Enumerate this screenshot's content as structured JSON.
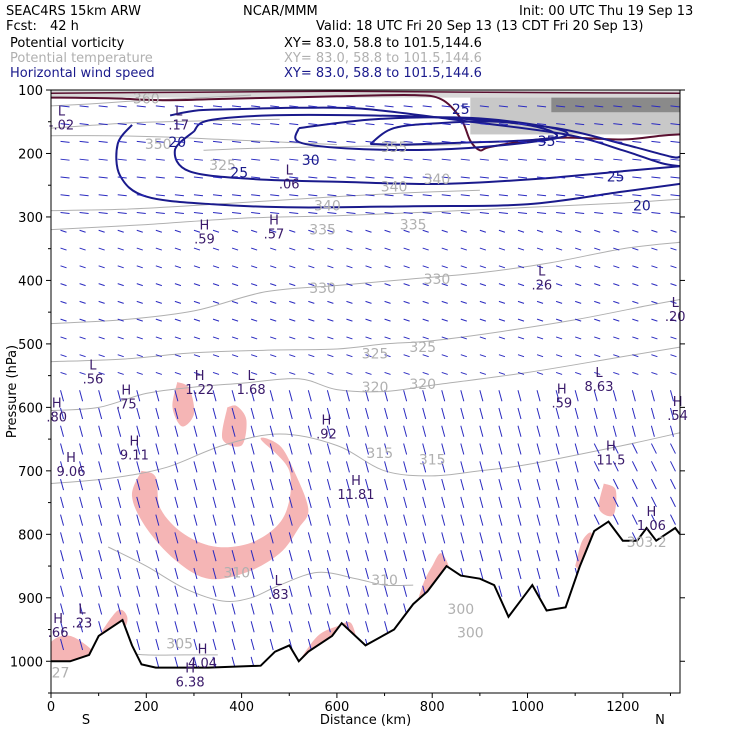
{
  "header": {
    "model": "SEAC4RS 15km ARW",
    "center": "NCAR/MMM",
    "init": "Init: 00 UTC Thu 19 Sep 13",
    "fcst_label": "Fcst:",
    "fcst_value": "42 h",
    "valid": "Valid: 18 UTC Fri 20 Sep 13 (13 CDT Fri 20 Sep 13)",
    "fields": [
      {
        "name": "Potential vorticity",
        "xy": "XY=  83.0, 58.8 to 101.5,144.6",
        "color": "#000000"
      },
      {
        "name": "Potential temperature",
        "xy": "XY=  83.0, 58.8 to 101.5,144.6",
        "color": "#b0b0b0"
      },
      {
        "name": "Horizontal wind speed",
        "xy": "XY=  83.0, 58.8 to 101.5,144.6",
        "color": "#1a1a8c"
      }
    ]
  },
  "chart_data": {
    "type": "cross-section",
    "xlabel": "Distance (km)",
    "ylabel": "Pressure (hPa)",
    "xlim": [
      0,
      1320
    ],
    "ylim": [
      1050,
      100
    ],
    "x_ticks": [
      0,
      200,
      400,
      600,
      800,
      1000,
      1200
    ],
    "y_ticks": [
      100,
      200,
      300,
      400,
      500,
      600,
      700,
      800,
      900,
      1000
    ],
    "end_labels": {
      "left": "S",
      "right": "N"
    },
    "colors": {
      "isentropes": "#b0b0b0",
      "wind_contours": "#1a1a8c",
      "wind_vectors": "#2a2ac0",
      "pv_fill": "#f5b5b5",
      "pv_contour": "#5a1030",
      "terrain": "#000000"
    },
    "isentropes": [
      {
        "theta": 360,
        "points": [
          [
            0,
            125
          ],
          [
            80,
            122
          ],
          [
            160,
            118
          ],
          [
            240,
            115
          ],
          [
            320,
            112
          ],
          [
            420,
            108
          ]
        ]
      },
      {
        "theta": 350,
        "points": [
          [
            0,
            160
          ],
          [
            80,
            156
          ],
          [
            160,
            152
          ],
          [
            240,
            150
          ],
          [
            360,
            148
          ],
          [
            480,
            146
          ]
        ]
      },
      {
        "theta": 345,
        "points": [
          [
            320,
            195
          ],
          [
            420,
            192
          ],
          [
            540,
            190
          ],
          [
            700,
            188
          ],
          [
            860,
            186
          ]
        ]
      },
      {
        "theta": 325,
        "points": [
          [
            0,
            172
          ],
          [
            120,
            172
          ],
          [
            240,
            174
          ],
          [
            360,
            178
          ],
          [
            480,
            182
          ],
          [
            600,
            186
          ]
        ]
      },
      {
        "theta": 340,
        "points": [
          [
            0,
            290
          ],
          [
            150,
            288
          ],
          [
            300,
            282
          ],
          [
            450,
            275
          ],
          [
            600,
            268
          ],
          [
            750,
            262
          ],
          [
            900,
            258
          ]
        ]
      },
      {
        "theta": 335,
        "points": [
          [
            0,
            320
          ],
          [
            200,
            312
          ],
          [
            400,
            302
          ],
          [
            600,
            298
          ],
          [
            800,
            292
          ],
          [
            1000,
            285
          ],
          [
            1200,
            278
          ],
          [
            1320,
            272
          ]
        ]
      },
      {
        "theta": 330,
        "points": [
          [
            0,
            468
          ],
          [
            150,
            462
          ],
          [
            300,
            448
          ],
          [
            450,
            418
          ],
          [
            600,
            408
          ],
          [
            750,
            398
          ],
          [
            900,
            388
          ],
          [
            1050,
            372
          ],
          [
            1200,
            350
          ],
          [
            1320,
            340
          ]
        ]
      },
      {
        "theta": 325,
        "points": [
          [
            0,
            528
          ],
          [
            150,
            524
          ],
          [
            300,
            514
          ],
          [
            450,
            510
          ],
          [
            600,
            508
          ],
          [
            700,
            500
          ],
          [
            800,
            495
          ],
          [
            950,
            480
          ],
          [
            1100,
            462
          ],
          [
            1250,
            440
          ],
          [
            1320,
            430
          ]
        ]
      },
      {
        "theta": 320,
        "points": [
          [
            0,
            605
          ],
          [
            100,
            600
          ],
          [
            200,
            578
          ],
          [
            300,
            568
          ],
          [
            400,
            562
          ],
          [
            520,
            555
          ],
          [
            600,
            572
          ],
          [
            700,
            575
          ],
          [
            800,
            565
          ],
          [
            1000,
            545
          ],
          [
            1200,
            520
          ],
          [
            1320,
            505
          ]
        ]
      },
      {
        "theta": 315,
        "points": [
          [
            0,
            720
          ],
          [
            120,
            712
          ],
          [
            240,
            695
          ],
          [
            360,
            660
          ],
          [
            480,
            642
          ],
          [
            600,
            660
          ],
          [
            700,
            700
          ],
          [
            800,
            708
          ],
          [
            900,
            700
          ],
          [
            1000,
            690
          ],
          [
            1200,
            660
          ],
          [
            1320,
            640
          ]
        ]
      },
      {
        "theta": 310,
        "points": [
          [
            120,
            820
          ],
          [
            200,
            850
          ],
          [
            280,
            885
          ],
          [
            360,
            905
          ],
          [
            420,
            900
          ],
          [
            480,
            880
          ],
          [
            560,
            860
          ],
          [
            640,
            870
          ],
          [
            700,
            880
          ],
          [
            760,
            880
          ]
        ]
      },
      {
        "theta": 305,
        "points": [
          [
            120,
            985
          ],
          [
            200,
            990
          ],
          [
            280,
            990
          ],
          [
            350,
            990
          ]
        ]
      },
      {
        "theta": 300,
        "points": [
          [
            820,
            920
          ],
          [
            880,
            950
          ],
          [
            940,
            955
          ]
        ]
      }
    ],
    "isentrope_labels": [
      {
        "x": 200,
        "p": 113,
        "text": "360"
      },
      {
        "x": 225,
        "p": 185,
        "text": "350"
      },
      {
        "x": 360,
        "p": 218,
        "text": "325"
      },
      {
        "x": 720,
        "p": 190,
        "text": "355"
      },
      {
        "x": 810,
        "p": 240,
        "text": "340"
      },
      {
        "x": 580,
        "p": 282,
        "text": "340"
      },
      {
        "x": 720,
        "p": 252,
        "text": "340"
      },
      {
        "x": 570,
        "p": 320,
        "text": "335"
      },
      {
        "x": 760,
        "p": 312,
        "text": "335"
      },
      {
        "x": 570,
        "p": 412,
        "text": "330"
      },
      {
        "x": 810,
        "p": 398,
        "text": "330"
      },
      {
        "x": 680,
        "p": 515,
        "text": "325"
      },
      {
        "x": 780,
        "p": 505,
        "text": "325"
      },
      {
        "x": 680,
        "p": 568,
        "text": "320"
      },
      {
        "x": 780,
        "p": 563,
        "text": "320"
      },
      {
        "x": 690,
        "p": 672,
        "text": "315"
      },
      {
        "x": 800,
        "p": 682,
        "text": "315"
      },
      {
        "x": 390,
        "p": 860,
        "text": "310"
      },
      {
        "x": 700,
        "p": 872,
        "text": "310"
      },
      {
        "x": 270,
        "p": 972,
        "text": "305"
      },
      {
        "x": 860,
        "p": 918,
        "text": "300"
      },
      {
        "x": 880,
        "p": 955,
        "text": "300"
      },
      {
        "x": 1250,
        "p": 812,
        "text": "303.2"
      },
      {
        "x": 20,
        "p": 1018,
        "text": "27"
      }
    ],
    "wind_speed_contours": [
      {
        "value": 20,
        "points": [
          [
            250,
            140
          ],
          [
            310,
            132
          ],
          [
            400,
            130
          ],
          [
            520,
            128
          ],
          [
            660,
            130
          ],
          [
            860,
            148
          ],
          [
            1080,
            170
          ],
          [
            1200,
            195
          ],
          [
            1280,
            215
          ],
          [
            1320,
            220
          ]
        ]
      },
      {
        "value": 20,
        "points": [
          [
            170,
            155
          ],
          [
            140,
            185
          ],
          [
            145,
            235
          ],
          [
            200,
            268
          ],
          [
            340,
            280
          ],
          [
            520,
            285
          ],
          [
            760,
            283
          ],
          [
            1000,
            280
          ],
          [
            1200,
            260
          ],
          [
            1320,
            248
          ]
        ]
      },
      {
        "value": 25,
        "points": [
          [
            300,
            165
          ],
          [
            330,
            148
          ],
          [
            460,
            140
          ],
          [
            660,
            140
          ],
          [
            860,
            145
          ],
          [
            1060,
            160
          ],
          [
            1200,
            185
          ],
          [
            1300,
            205
          ],
          [
            1320,
            205
          ]
        ]
      },
      {
        "value": 25,
        "points": [
          [
            300,
            165
          ],
          [
            260,
            195
          ],
          [
            290,
            228
          ],
          [
            420,
            240
          ],
          [
            620,
            245
          ],
          [
            820,
            248
          ],
          [
            1020,
            240
          ],
          [
            1200,
            228
          ],
          [
            1320,
            220
          ]
        ]
      },
      {
        "value": 30,
        "points": [
          [
            520,
            160
          ],
          [
            680,
            146
          ],
          [
            880,
            144
          ],
          [
            1040,
            158
          ],
          [
            1080,
            172
          ],
          [
            960,
            186
          ],
          [
            800,
            194
          ],
          [
            620,
            192
          ],
          [
            520,
            182
          ],
          [
            520,
            160
          ]
        ]
      },
      {
        "value": 35,
        "points": [
          [
            670,
            185
          ],
          [
            720,
            160
          ],
          [
            820,
            152
          ],
          [
            940,
            150
          ],
          [
            1030,
            160
          ],
          [
            1060,
            174
          ],
          [
            980,
            180
          ],
          [
            860,
            183
          ],
          [
            740,
            186
          ],
          [
            670,
            185
          ]
        ]
      }
    ],
    "wind_labels": [
      {
        "x": 265,
        "p": 182,
        "text": "20"
      },
      {
        "x": 395,
        "p": 230,
        "text": "25"
      },
      {
        "x": 545,
        "p": 210,
        "text": "30"
      },
      {
        "x": 860,
        "p": 130,
        "text": "25"
      },
      {
        "x": 1040,
        "p": 180,
        "text": "35"
      },
      {
        "x": 1185,
        "p": 236,
        "text": "25"
      },
      {
        "x": 1240,
        "p": 282,
        "text": "20"
      }
    ],
    "pv_extrema": [
      {
        "kind": "L",
        "x": 22,
        "p": 140,
        "value": "-.02"
      },
      {
        "kind": "L",
        "x": 268,
        "p": 140,
        "value": ".17"
      },
      {
        "kind": "L",
        "x": 500,
        "p": 233,
        "value": ".06"
      },
      {
        "kind": "H",
        "x": 322,
        "p": 320,
        "value": ".59"
      },
      {
        "kind": "H",
        "x": 468,
        "p": 312,
        "value": ".57"
      },
      {
        "kind": "L",
        "x": 1030,
        "p": 392,
        "value": ".26"
      },
      {
        "kind": "L",
        "x": 1310,
        "p": 442,
        "value": ".20"
      },
      {
        "kind": "L",
        "x": 88,
        "p": 540,
        "value": ".56"
      },
      {
        "kind": "H",
        "x": 158,
        "p": 580,
        "value": ".75"
      },
      {
        "kind": "H",
        "x": 312,
        "p": 557,
        "value": "1.22"
      },
      {
        "kind": "L",
        "x": 420,
        "p": 557,
        "value": "1.68"
      },
      {
        "kind": "H",
        "x": 1072,
        "p": 578,
        "value": ".59"
      },
      {
        "kind": "L",
        "x": 1150,
        "p": 552,
        "value": "8.63"
      },
      {
        "kind": "H",
        "x": 1315,
        "p": 598,
        "value": ".54"
      },
      {
        "kind": "H",
        "x": 12,
        "p": 600,
        "value": ".80"
      },
      {
        "kind": "H",
        "x": 578,
        "p": 627,
        "value": ".92"
      },
      {
        "kind": "H",
        "x": 175,
        "p": 660,
        "value": "9.11"
      },
      {
        "kind": "H",
        "x": 42,
        "p": 686,
        "value": "9.06"
      },
      {
        "kind": "H",
        "x": 1175,
        "p": 668,
        "value": "11.5"
      },
      {
        "kind": "H",
        "x": 640,
        "p": 722,
        "value": "11.81"
      },
      {
        "kind": "H",
        "x": 1260,
        "p": 771,
        "value": "1.06"
      },
      {
        "kind": "L",
        "x": 477,
        "p": 880,
        "value": ".83"
      },
      {
        "kind": "H",
        "x": 15,
        "p": 940,
        "value": ".66"
      },
      {
        "kind": "L",
        "x": 65,
        "p": 925,
        "value": ".23"
      },
      {
        "kind": "H",
        "x": 318,
        "p": 988,
        "value": "4.04"
      },
      {
        "kind": "H",
        "x": 292,
        "p": 1018,
        "value": "6.38"
      }
    ],
    "terrain_profile": [
      [
        0,
        1000
      ],
      [
        40,
        1000
      ],
      [
        80,
        990
      ],
      [
        100,
        960
      ],
      [
        130,
        945
      ],
      [
        150,
        935
      ],
      [
        170,
        975
      ],
      [
        190,
        1005
      ],
      [
        220,
        1010
      ],
      [
        330,
        1010
      ],
      [
        440,
        1007
      ],
      [
        470,
        985
      ],
      [
        500,
        975
      ],
      [
        520,
        1000
      ],
      [
        540,
        985
      ],
      [
        590,
        960
      ],
      [
        610,
        940
      ],
      [
        660,
        975
      ],
      [
        720,
        950
      ],
      [
        760,
        910
      ],
      [
        790,
        890
      ],
      [
        830,
        850
      ],
      [
        860,
        865
      ],
      [
        900,
        870
      ],
      [
        930,
        880
      ],
      [
        960,
        930
      ],
      [
        990,
        900
      ],
      [
        1010,
        880
      ],
      [
        1040,
        920
      ],
      [
        1080,
        915
      ],
      [
        1110,
        850
      ],
      [
        1140,
        795
      ],
      [
        1170,
        780
      ],
      [
        1200,
        810
      ],
      [
        1230,
        810
      ],
      [
        1250,
        790
      ],
      [
        1270,
        810
      ],
      [
        1290,
        800
      ],
      [
        1310,
        790
      ],
      [
        1320,
        800
      ]
    ],
    "wind_field_note": "vectors: rightward/westerly aloft, downward-pointing in lower troposphere"
  }
}
